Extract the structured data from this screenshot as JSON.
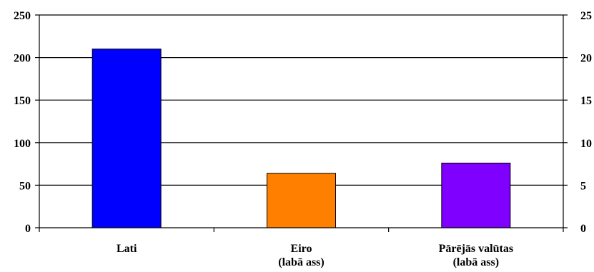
{
  "chart_data": {
    "type": "bar",
    "title": "",
    "xlabel": "",
    "ylabel": "",
    "categories": [
      {
        "lines": [
          "Lati"
        ],
        "axis": "left"
      },
      {
        "lines": [
          "Eiro",
          "(labā ass)"
        ],
        "axis": "right"
      },
      {
        "lines": [
          "Pārējās valūtas",
          "(labā ass)"
        ],
        "axis": "right"
      }
    ],
    "values": [
      210,
      6.4,
      7.6
    ],
    "colors": [
      "#0000ff",
      "#ff7f00",
      "#7f00ff"
    ],
    "ylim_left": [
      0,
      250
    ],
    "yticks_left": [
      0,
      50,
      100,
      150,
      200,
      250
    ],
    "ylim_right": [
      0,
      25
    ],
    "yticks_right": [
      0,
      5,
      10,
      15,
      20,
      25
    ],
    "grid": true,
    "legend": "none"
  }
}
